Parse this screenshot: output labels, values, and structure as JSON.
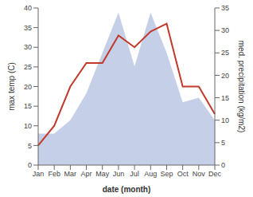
{
  "chart_data": {
    "type": "line",
    "categories": [
      "Jan",
      "Feb",
      "Mar",
      "Apr",
      "May",
      "Jun",
      "Jul",
      "Aug",
      "Sep",
      "Oct",
      "Nov",
      "Dec"
    ],
    "series": [
      {
        "type": "area",
        "axis": "y2",
        "color": "#c5cfe8",
        "values": [
          7,
          7,
          10,
          16,
          25,
          34,
          22,
          34,
          25,
          14,
          15,
          10
        ]
      },
      {
        "type": "line",
        "axis": "y",
        "color": "#c0392b",
        "values": [
          5,
          10,
          20,
          26,
          26,
          33,
          30,
          34,
          36,
          20,
          20,
          13
        ]
      }
    ],
    "xlabel": "date (month)",
    "ylabel": "max temp (C)",
    "y2label": "med. precipitation (kg/m2)",
    "ylim": [
      0,
      40
    ],
    "yticks": [
      0,
      5,
      10,
      15,
      20,
      25,
      30,
      35,
      40
    ],
    "y2lim": [
      0,
      35
    ],
    "y2ticks": [
      0,
      5,
      10,
      15,
      20,
      25,
      30,
      35
    ],
    "grid": false
  }
}
